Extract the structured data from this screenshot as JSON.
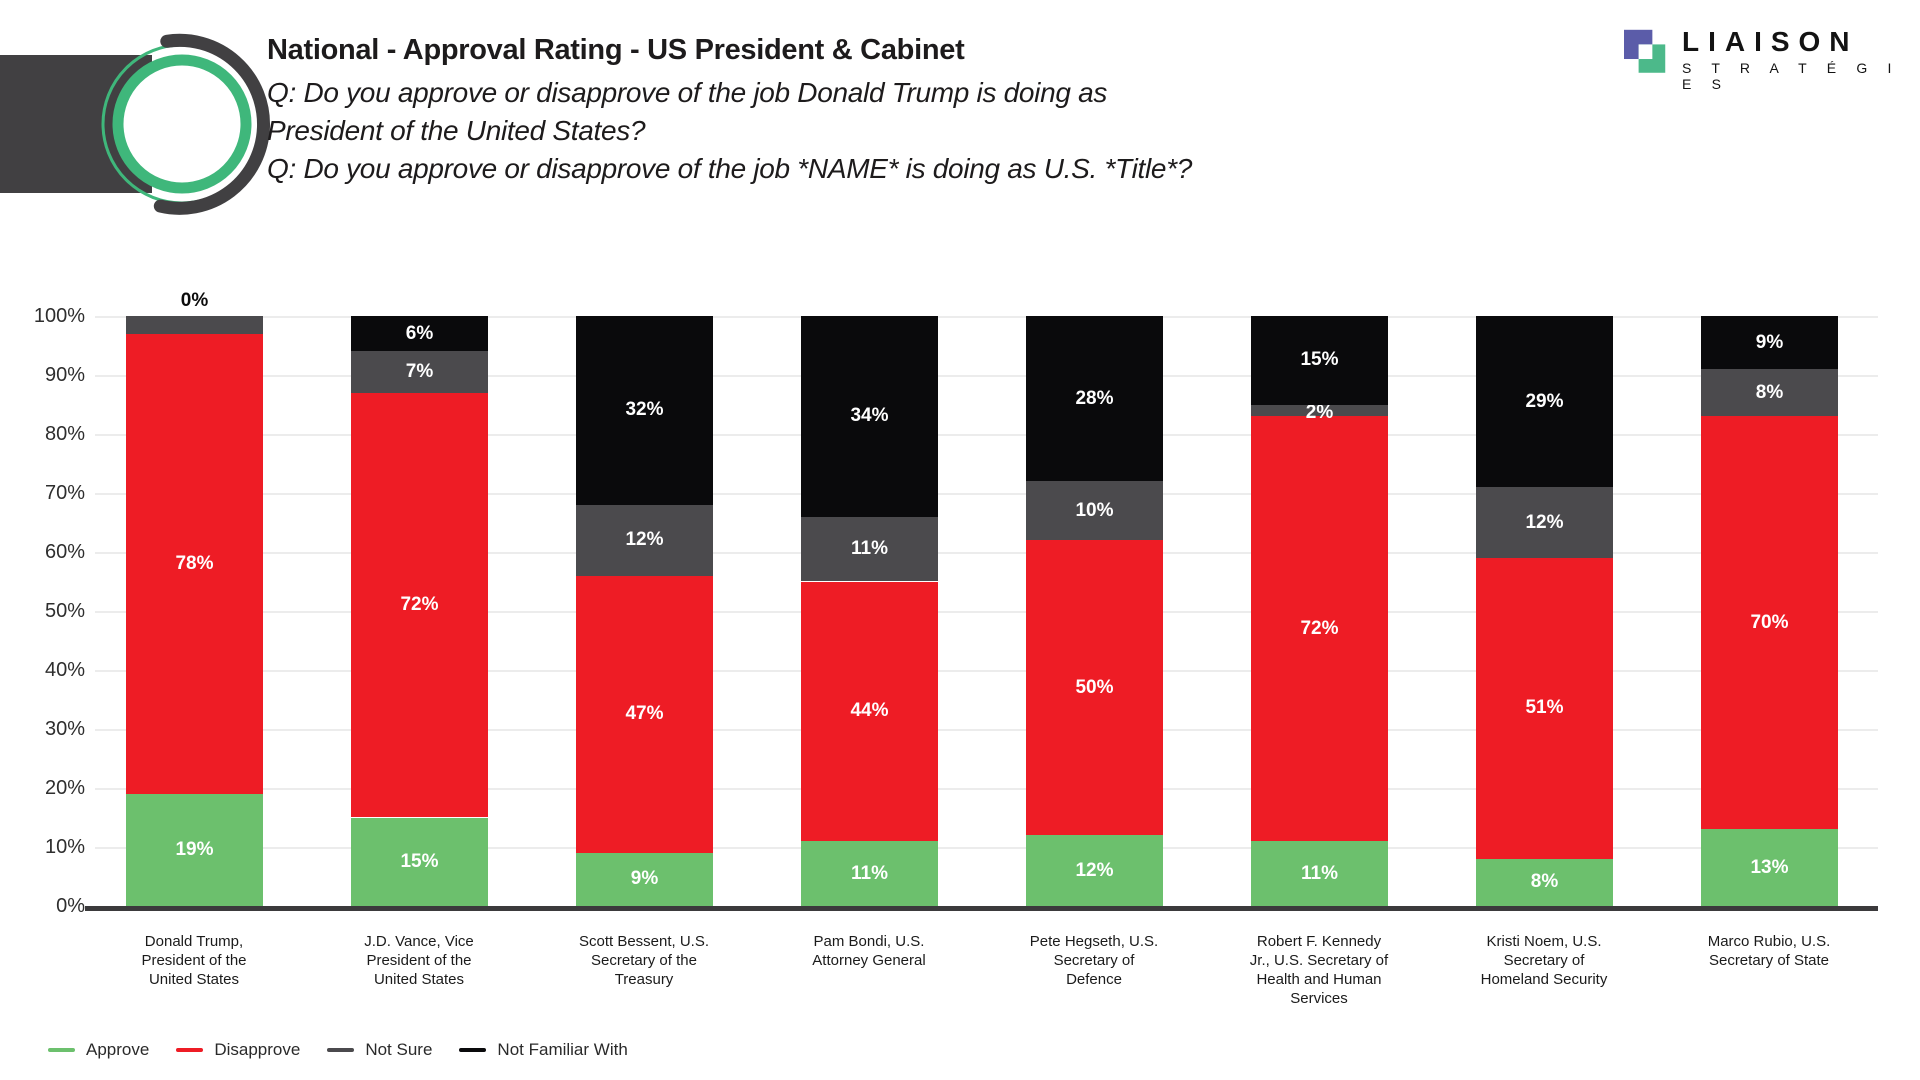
{
  "header": {
    "title": "National - Approval Rating - US President & Cabinet",
    "question1_line1": "Q: Do you approve or disapprove of the job Donald Trump is doing as",
    "question1_line2": "President of the United States?",
    "question2": "Q: Do you approve or disapprove of the job *NAME* is doing as U.S. *Title*?"
  },
  "brand": {
    "name": "LIAISON",
    "subname": "S T R A T É G I E S"
  },
  "colors": {
    "approve": "#6cc06d",
    "disapprove": "#ee1c25",
    "not_sure": "#4b4a4d",
    "not_familiar": "#0a0a0c",
    "axis": "#3b3a3c",
    "gridline": "#ececec",
    "brand_green_ring": "#3fb77b",
    "brand_dark": "#414042",
    "logo_purple": "#5b5ca9",
    "logo_green": "#4cb98a"
  },
  "chart_data": {
    "type": "bar",
    "stacked": true,
    "title": "National - Approval Rating - US President & Cabinet",
    "xlabel": "",
    "ylabel": "",
    "ylim": [
      0,
      100
    ],
    "grid": true,
    "legend_position": "bottom-left",
    "y_ticks": [
      "0%",
      "10%",
      "20%",
      "30%",
      "40%",
      "50%",
      "60%",
      "70%",
      "80%",
      "90%",
      "100%"
    ],
    "categories": [
      "Donald Trump, President of the United States",
      "J.D. Vance, Vice President of the United States",
      "Scott Bessent, U.S. Secretary of the Treasury",
      "Pam Bondi, U.S. Attorney General",
      "Pete Hegseth, U.S. Secretary of Defence",
      "Robert F. Kennedy Jr., U.S. Secretary of Health and Human Services",
      "Kristi Noem, U.S. Secretary of Homeland Security",
      "Marco Rubio, U.S. Secretary of State"
    ],
    "series": [
      {
        "name": "Approve",
        "color_key": "approve",
        "values": [
          19,
          15,
          9,
          11,
          12,
          11,
          8,
          13
        ],
        "labels": [
          "19%",
          "15%",
          "9%",
          "11%",
          "12%",
          "11%",
          "8%",
          "13%"
        ]
      },
      {
        "name": "Disapprove",
        "color_key": "disapprove",
        "values": [
          78,
          72,
          47,
          44,
          50,
          72,
          51,
          70
        ],
        "labels": [
          "78%",
          "72%",
          "47%",
          "44%",
          "50%",
          "72%",
          "51%",
          "70%"
        ]
      },
      {
        "name": "Not Sure",
        "color_key": "not_sure",
        "values": [
          3,
          7,
          12,
          11,
          10,
          2,
          12,
          8
        ],
        "labels": [
          null,
          "7%",
          "12%",
          "11%",
          "10%",
          "2%",
          "12%",
          "8%"
        ]
      },
      {
        "name": "Not Familiar With",
        "color_key": "not_familiar",
        "values": [
          0,
          6,
          32,
          34,
          28,
          15,
          29,
          9
        ],
        "labels": [
          "0%",
          "6%",
          "32%",
          "34%",
          "28%",
          "15%",
          "29%",
          "9%"
        ]
      }
    ]
  }
}
